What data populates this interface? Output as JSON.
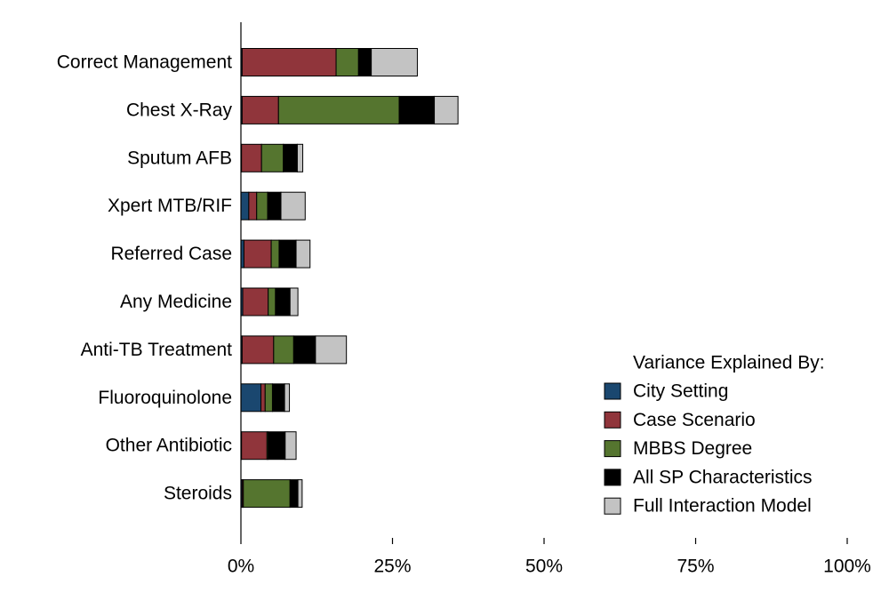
{
  "chart_data": {
    "type": "bar",
    "orientation": "horizontal",
    "stacked": true,
    "categories": [
      "Correct Management",
      "Chest X-Ray",
      "Sputum AFB",
      "Xpert MTB/RIF",
      "Referred Case",
      "Any Medicine",
      "Anti-TB Treatment",
      "Fluoroquinolone",
      "Other Antibiotic",
      "Steroids"
    ],
    "series": [
      {
        "name": "City Setting",
        "color": "#1a476f",
        "values": [
          0.2,
          0.2,
          0.1,
          1.3,
          0.5,
          0.3,
          0.2,
          3.3,
          0.1,
          0.2
        ]
      },
      {
        "name": "Case Scenario",
        "color": "#90353b",
        "values": [
          15.5,
          6.0,
          3.3,
          1.3,
          4.5,
          4.2,
          5.2,
          0.7,
          4.2,
          0.2
        ]
      },
      {
        "name": "MBBS Degree",
        "color": "#55752f",
        "values": [
          3.7,
          19.9,
          3.6,
          1.8,
          1.3,
          1.2,
          3.3,
          1.2,
          0.2,
          7.7
        ]
      },
      {
        "name": "All SP Characteristics",
        "color": "#000000",
        "values": [
          2.1,
          5.8,
          2.3,
          2.2,
          2.8,
          2.4,
          3.6,
          2.0,
          2.8,
          1.3
        ]
      },
      {
        "name": "Full Interaction Model",
        "color": "#c3c3c3",
        "values": [
          7.6,
          3.9,
          0.9,
          4.0,
          2.3,
          1.3,
          5.1,
          0.8,
          1.8,
          0.7
        ]
      }
    ],
    "xlim": [
      0,
      100
    ],
    "xticks": [
      "0%",
      "25%",
      "50%",
      "75%",
      "100%"
    ],
    "grid": false,
    "legend": {
      "title": "Variance Explained By:",
      "position": "bottom-right"
    }
  }
}
